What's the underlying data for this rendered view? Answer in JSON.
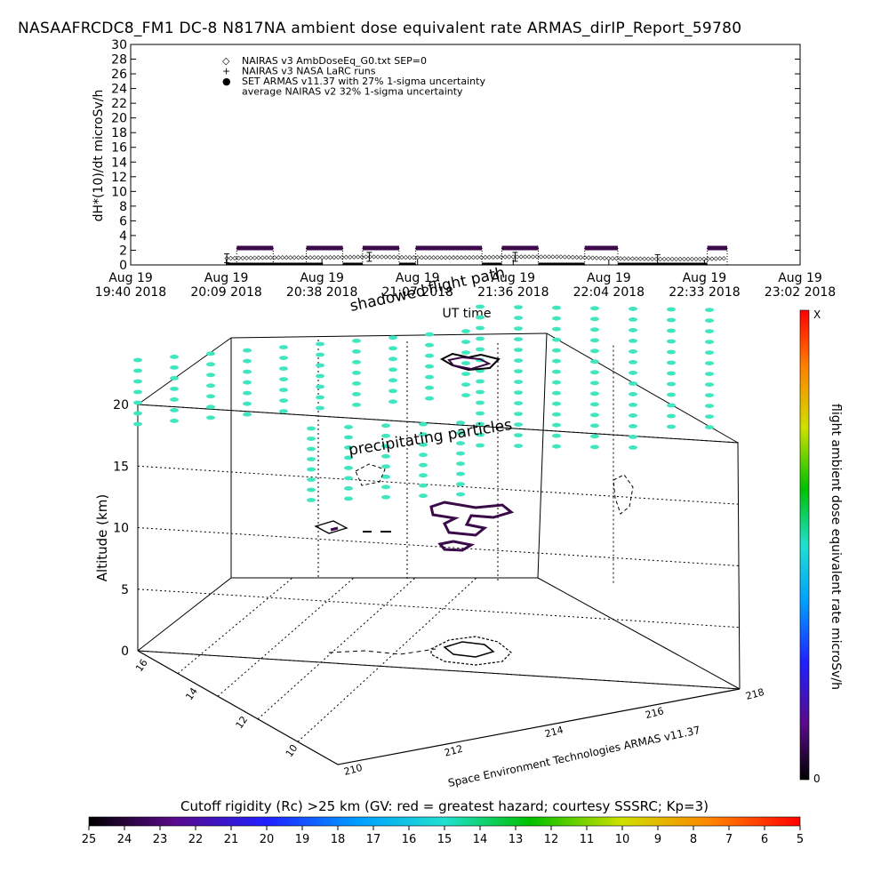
{
  "page": {
    "title": "NASAAFRCDC8_FM1 DC-8   N817NA ambient dose equivalent rate ARMAS_dirIP_Report_59780",
    "annotations": {
      "shadowed": "shadowed",
      "flight_path": "flight path",
      "precipitating": "precipitating particles",
      "credit": "Space Environment Technologies ARMAS v11.37"
    }
  },
  "chart_data": [
    {
      "type": "line",
      "title": "NASAAFRCDC8_FM1 DC-8   N817NA ambient dose equivalent rate ARMAS_dirIP_Report_59780",
      "xlabel": "UT time",
      "ylabel": "dH*(10)/dt microSv/h",
      "ylim": [
        0,
        30
      ],
      "yticks": [
        0,
        2,
        4,
        6,
        8,
        10,
        12,
        14,
        16,
        18,
        20,
        22,
        24,
        26,
        28,
        30
      ],
      "xticks": [
        {
          "date": "Aug 19",
          "time": "19:40 2018"
        },
        {
          "date": "Aug 19",
          "time": "20:09 2018"
        },
        {
          "date": "Aug 19",
          "time": "20:38 2018"
        },
        {
          "date": "Aug 19",
          "time": "21:07 2018"
        },
        {
          "date": "Aug 19",
          "time": "21:36 2018"
        },
        {
          "date": "Aug 19",
          "time": "22:04 2018"
        },
        {
          "date": "Aug 19",
          "time": "22:33 2018"
        },
        {
          "date": "Aug 19",
          "time": "23:02 2018"
        }
      ],
      "legend": [
        {
          "symbol": "◇",
          "label": "NAIRAS v3 AmbDoseEq_G0.txt SEP=0"
        },
        {
          "symbol": "+",
          "label": "NAIRAS v3 NASA LaRC runs"
        },
        {
          "symbol": "●",
          "label": "SET ARMAS v11.37 with 27% 1-sigma uncertainty",
          "color": "#1f2fcf"
        },
        {
          "symbol": "",
          "label": "average NAIRAS v2 32% 1-sigma uncertainty"
        }
      ],
      "series": [
        {
          "name": "NAIRAS v3 AmbDoseEq_G0.txt SEP=0",
          "x": [
            "20:09",
            "20:23",
            "20:38",
            "20:52",
            "21:07",
            "21:21",
            "21:36",
            "21:50",
            "22:04",
            "22:19",
            "22:33",
            "22:40"
          ],
          "y": [
            0.9,
            1.0,
            1.0,
            1.1,
            1.0,
            1.0,
            1.1,
            1.1,
            0.9,
            0.8,
            0.8,
            0.9
          ]
        },
        {
          "name": "SET ARMAS v11.37 with 27% 1-sigma uncertainty",
          "segments": [
            {
              "x0": "20:12",
              "x1": "20:23",
              "y": 2.3
            },
            {
              "x0": "20:33",
              "x1": "20:44",
              "y": 2.3
            },
            {
              "x0": "20:50",
              "x1": "21:01",
              "y": 2.3
            },
            {
              "x0": "21:06",
              "x1": "21:26",
              "y": 2.3
            },
            {
              "x0": "21:32",
              "x1": "21:43",
              "y": 2.3
            },
            {
              "x0": "21:57",
              "x1": "22:07",
              "y": 2.3
            },
            {
              "x0": "22:34",
              "x1": "22:40",
              "y": 2.3
            }
          ]
        }
      ],
      "colors": {
        "armas": "#3c0a4a",
        "nairas": "#000000"
      }
    },
    {
      "type": "scatter",
      "ylabel": "Altitude (km)",
      "zticks": [
        0,
        5,
        10,
        15,
        20
      ],
      "lat_ticks": [
        10,
        12,
        14,
        16
      ],
      "lon_ticks": [
        210,
        212,
        214,
        216,
        218
      ],
      "colorbar_right": {
        "label": "flight ambient dose equivalent rate microSv/h",
        "max_label": "X",
        "min_label": "0"
      },
      "colorbar_bottom": {
        "title": "Cutoff rigidity (Rc) >25 km (GV: red = greatest hazard; courtesy SSSRC; Kp=3)",
        "ticks": [
          25,
          24,
          23,
          22,
          21,
          20,
          19,
          18,
          17,
          16,
          15,
          14,
          13,
          12,
          11,
          10,
          9,
          8,
          7,
          6,
          5
        ]
      },
      "colors": {
        "rigidity_points": "#3fe6c0",
        "flight_track": "#4a1050"
      }
    }
  ]
}
